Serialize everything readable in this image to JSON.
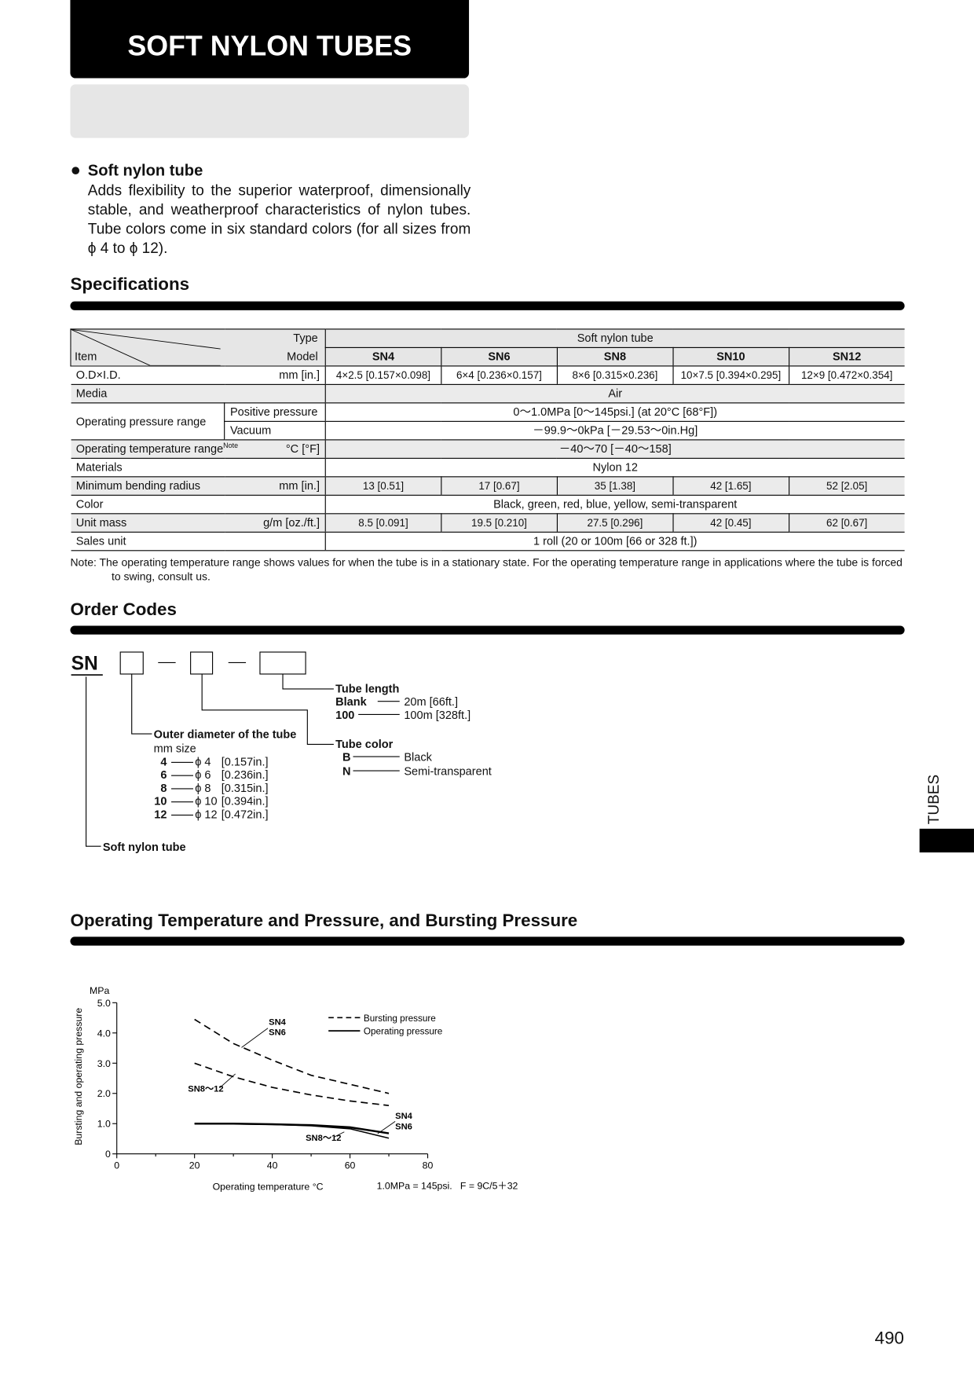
{
  "header": {
    "title": "SOFT NYLON TUBES"
  },
  "intro": {
    "heading": "Soft nylon tube",
    "body": "Adds flexibility to the superior waterproof, dimensionally stable, and weatherproof characteristics of nylon tubes. Tube colors come in six standard colors (for all sizes from ϕ 4 to ϕ 12)."
  },
  "specifications": {
    "title": "Specifications",
    "corner": {
      "type": "Type",
      "model": "Model",
      "item": "Item"
    },
    "type_value": "Soft nylon tube",
    "models": [
      "SN4",
      "SN6",
      "SN8",
      "SN10",
      "SN12"
    ],
    "rows": [
      {
        "item": "O.D×I.D.",
        "unit": "mm [in.]",
        "cells": [
          "4×2.5 [0.157×0.098]",
          "6×4 [0.236×0.157]",
          "8×6 [0.315×0.236]",
          "10×7.5 [0.394×0.295]",
          "12×9 [0.472×0.354]"
        ]
      },
      {
        "item": "Media",
        "value": "Air"
      },
      {
        "item": "Operating pressure range",
        "sub": [
          {
            "label": "Positive pressure",
            "value": "0～1.0MPa [0～145psi.] (at 20°C [68°F])"
          },
          {
            "label": "Vacuum",
            "value": "－99.9～0kPa [－29.53～0in.Hg]"
          }
        ]
      },
      {
        "item": "Operating temperature range",
        "note": "Note",
        "unit": "°C [°F]",
        "value": "－40～70 [－40～158]"
      },
      {
        "item": "Materials",
        "value": "Nylon 12"
      },
      {
        "item": "Minimum bending radius",
        "unit": "mm [in.]",
        "cells": [
          "13 [0.51]",
          "17 [0.67]",
          "35 [1.38]",
          "42 [1.65]",
          "52 [2.05]"
        ]
      },
      {
        "item": "Color",
        "value": "Black, green, red, blue, yellow, semi-transparent"
      },
      {
        "item": "Unit mass",
        "unit": "g/m [oz./ft.]",
        "cells": [
          "8.5 [0.091]",
          "19.5 [0.210]",
          "27.5 [0.296]",
          "42 [0.45]",
          "62 [0.67]"
        ]
      },
      {
        "item": "Sales unit",
        "value": "1 roll (20 or 100m [66 or 328 ft.])"
      }
    ],
    "note": "Note: The operating temperature range shows values for when the tube is in a stationary state. For the operating temperature range in applications where the tube is forced to swing, consult us."
  },
  "order_codes": {
    "title": "Order Codes",
    "prefix": "SN",
    "tube_length": {
      "title": "Tube length",
      "options": [
        {
          "code": "Blank",
          "desc": "20m [66ft.]"
        },
        {
          "code": "100",
          "desc": "100m [328ft.]"
        }
      ]
    },
    "tube_color": {
      "title": "Tube color",
      "options": [
        {
          "code": "B",
          "desc": "Black"
        },
        {
          "code": "N",
          "desc": "Semi-transparent"
        }
      ]
    },
    "outer_diameter": {
      "title": "Outer diameter of the tube",
      "unit": "mm size",
      "options": [
        {
          "code": "4",
          "size": "ϕ 4",
          "inch": "[0.157in.]"
        },
        {
          "code": "6",
          "size": "ϕ 6",
          "inch": "[0.236in.]"
        },
        {
          "code": "8",
          "size": "ϕ 8",
          "inch": "[0.315in.]"
        },
        {
          "code": "10",
          "size": "ϕ 10",
          "inch": "[0.394in.]"
        },
        {
          "code": "12",
          "size": "ϕ 12",
          "inch": "[0.472in.]"
        }
      ]
    },
    "base": "Soft nylon tube"
  },
  "chart_section": {
    "title": "Operating Temperature and Pressure, and Bursting Pressure"
  },
  "chart_data": {
    "type": "line",
    "y_unit": "MPa",
    "y_label": "Bursting and operating pressure",
    "x_label": "Operating temperature °C",
    "note": "1.0MPa = 145psi.   F = 9C/5＋32",
    "x": [
      20,
      30,
      40,
      50,
      60,
      70
    ],
    "xlim": [
      0,
      80
    ],
    "xticks": [
      0,
      20,
      40,
      60,
      80
    ],
    "xminorticks": [
      10,
      30,
      50,
      70
    ],
    "ylim": [
      0,
      5
    ],
    "yticks": [
      0,
      {
        "value": 1,
        "label": "1.0"
      },
      {
        "value": 2,
        "label": "2.0"
      },
      {
        "value": 3,
        "label": "3.0"
      },
      {
        "value": 4,
        "label": "4.0"
      },
      {
        "value": 5,
        "label": "5.0"
      }
    ],
    "legend": [
      {
        "label": "Bursting pressure",
        "dash": true
      },
      {
        "label": "Operating pressure",
        "dash": false
      }
    ],
    "series": [
      {
        "labels": [
          "SN4",
          "SN6"
        ],
        "dash": true,
        "color": "#000000",
        "values": [
          4.45,
          3.65,
          3.1,
          2.6,
          2.3,
          2.0
        ]
      },
      {
        "labels": [
          "SN8～12"
        ],
        "dash": true,
        "color": "#000000",
        "values": [
          3.0,
          2.55,
          2.2,
          1.95,
          1.75,
          1.6
        ]
      },
      {
        "labels": [
          "SN4",
          "SN6"
        ],
        "dash": false,
        "color": "#000000",
        "values": [
          1.0,
          1.0,
          0.98,
          0.95,
          0.88,
          0.68
        ]
      },
      {
        "labels": [
          "SN8～12"
        ],
        "dash": false,
        "color": "#000000",
        "values": [
          1.0,
          0.99,
          0.97,
          0.93,
          0.83,
          0.52
        ]
      }
    ]
  },
  "side_tab": "TUBES",
  "page_number": "490"
}
